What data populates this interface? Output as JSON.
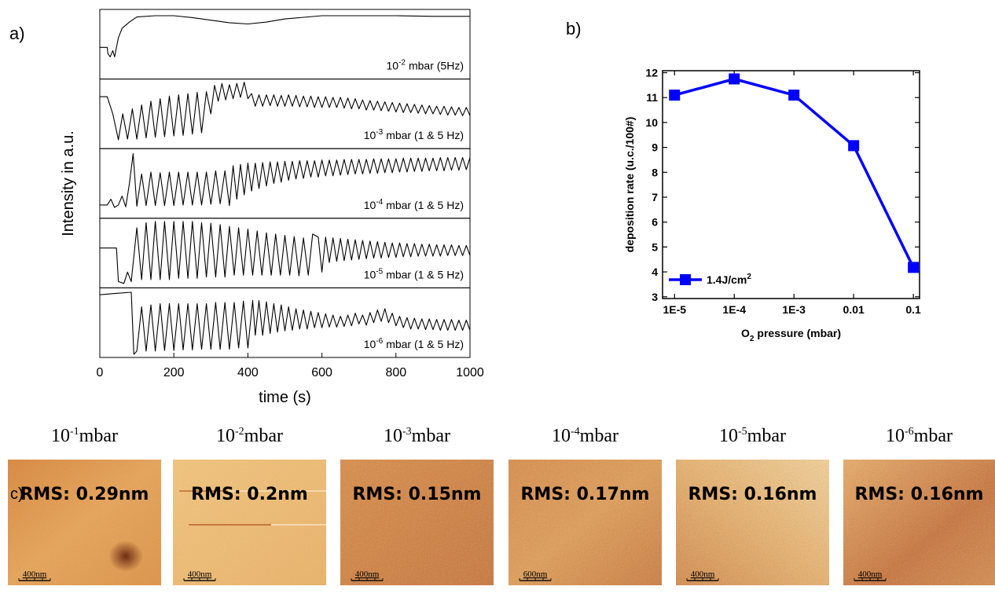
{
  "chart_data": [
    {
      "type": "line",
      "panel_label": "a)",
      "xlabel": "time (s)",
      "ylabel": "Intensity in a.u.",
      "xlim": [
        0,
        1000
      ],
      "xticks": [
        0,
        200,
        400,
        600,
        800,
        1000
      ],
      "panels": [
        {
          "annotation": {
            "base": "10",
            "exp": "-2",
            "suffix": "mbar (5Hz)"
          },
          "color": "#000000",
          "ylim": [
            0,
            1
          ],
          "x": [
            0,
            20,
            22,
            28,
            35,
            40,
            50,
            60,
            80,
            100,
            150,
            200,
            250,
            300,
            350,
            400,
            450,
            500,
            600,
            700,
            800,
            900,
            1000
          ],
          "values": [
            0.45,
            0.45,
            0.35,
            0.3,
            0.4,
            0.3,
            0.6,
            0.75,
            0.85,
            0.93,
            0.95,
            0.95,
            0.92,
            0.88,
            0.84,
            0.82,
            0.85,
            0.9,
            0.95,
            0.95,
            0.95,
            0.94,
            0.94
          ]
        },
        {
          "annotation": {
            "base": "10",
            "exp": "-3",
            "suffix": "mbar (1 & 5 Hz)"
          },
          "color": "#000000",
          "ylim": [
            0,
            1
          ],
          "x": [
            0,
            20,
            35,
            50,
            62,
            75,
            88,
            100,
            113,
            125,
            138,
            150,
            163,
            175,
            188,
            200,
            213,
            225,
            238,
            250,
            263,
            275,
            288,
            300,
            310,
            320,
            330,
            340,
            350,
            360,
            370,
            380,
            390,
            400,
            410,
            420,
            430,
            440,
            450,
            460,
            470,
            480,
            490,
            500,
            510,
            520,
            530,
            540,
            550,
            560,
            570,
            580,
            590,
            600,
            610,
            620,
            630,
            640,
            650,
            660,
            670,
            680,
            690,
            700,
            710,
            720,
            730,
            740,
            750,
            760,
            770,
            780,
            790,
            800,
            810,
            820,
            830,
            840,
            850,
            860,
            870,
            880,
            890,
            900,
            910,
            920,
            930,
            940,
            950,
            960,
            970,
            980,
            990,
            1000
          ],
          "values": [
            0.77,
            0.77,
            0.5,
            0.09,
            0.5,
            0.1,
            0.58,
            0.1,
            0.64,
            0.12,
            0.7,
            0.13,
            0.74,
            0.14,
            0.78,
            0.15,
            0.8,
            0.16,
            0.82,
            0.18,
            0.84,
            0.2,
            0.85,
            0.5,
            0.95,
            0.7,
            0.98,
            0.72,
            0.96,
            0.74,
            0.98,
            0.76,
            1.0,
            0.74,
            0.82,
            0.62,
            0.8,
            0.62,
            0.8,
            0.63,
            0.8,
            0.62,
            0.79,
            0.62,
            0.8,
            0.62,
            0.79,
            0.61,
            0.78,
            0.61,
            0.78,
            0.6,
            0.77,
            0.6,
            0.77,
            0.6,
            0.76,
            0.6,
            0.76,
            0.59,
            0.75,
            0.58,
            0.74,
            0.58,
            0.72,
            0.56,
            0.71,
            0.56,
            0.7,
            0.55,
            0.69,
            0.54,
            0.68,
            0.53,
            0.67,
            0.52,
            0.66,
            0.52,
            0.65,
            0.51,
            0.64,
            0.5,
            0.63,
            0.5,
            0.62,
            0.49,
            0.62,
            0.48,
            0.61,
            0.48,
            0.6,
            0.47,
            0.6,
            0.47
          ]
        },
        {
          "annotation": {
            "base": "10",
            "exp": "-4",
            "suffix": "mbar (1 & 5 Hz)"
          },
          "color": "#000000",
          "ylim": [
            0,
            1
          ],
          "x": [
            0,
            20,
            30,
            40,
            50,
            60,
            70,
            80,
            90,
            100,
            113,
            125,
            138,
            150,
            163,
            175,
            188,
            200,
            213,
            225,
            238,
            250,
            263,
            275,
            288,
            300,
            313,
            325,
            338,
            350,
            360,
            370,
            380,
            390,
            400,
            410,
            420,
            430,
            440,
            450,
            460,
            470,
            480,
            490,
            500,
            510,
            520,
            530,
            540,
            550,
            560,
            570,
            580,
            590,
            600,
            610,
            620,
            630,
            640,
            650,
            660,
            670,
            680,
            690,
            700,
            710,
            720,
            730,
            740,
            750,
            760,
            770,
            780,
            790,
            800,
            810,
            820,
            830,
            840,
            850,
            860,
            870,
            880,
            890,
            900,
            910,
            920,
            930,
            940,
            950,
            960,
            970,
            980,
            990,
            1000
          ],
          "values": [
            0.16,
            0.16,
            0.25,
            0.12,
            0.16,
            0.3,
            0.13,
            0.5,
            0.97,
            0.14,
            0.65,
            0.15,
            0.68,
            0.15,
            0.67,
            0.15,
            0.68,
            0.15,
            0.68,
            0.16,
            0.68,
            0.16,
            0.68,
            0.16,
            0.68,
            0.17,
            0.7,
            0.18,
            0.7,
            0.15,
            0.78,
            0.25,
            0.8,
            0.32,
            0.82,
            0.38,
            0.82,
            0.42,
            0.83,
            0.46,
            0.84,
            0.5,
            0.84,
            0.52,
            0.85,
            0.55,
            0.85,
            0.57,
            0.86,
            0.58,
            0.86,
            0.6,
            0.86,
            0.6,
            0.87,
            0.62,
            0.87,
            0.62,
            0.87,
            0.63,
            0.88,
            0.64,
            0.88,
            0.65,
            0.88,
            0.65,
            0.88,
            0.66,
            0.89,
            0.66,
            0.89,
            0.67,
            0.89,
            0.67,
            0.89,
            0.68,
            0.9,
            0.68,
            0.9,
            0.69,
            0.9,
            0.69,
            0.9,
            0.7,
            0.9,
            0.7,
            0.91,
            0.7,
            0.91,
            0.71,
            0.91,
            0.71,
            0.91,
            0.72,
            0.91
          ]
        },
        {
          "annotation": {
            "base": "10",
            "exp": "-5",
            "suffix": "mbar (1 & 5 Hz)"
          },
          "color": "#000000",
          "ylim": [
            0,
            1
          ],
          "x": [
            0,
            45,
            50,
            65,
            75,
            85,
            100,
            113,
            125,
            138,
            150,
            163,
            175,
            188,
            200,
            213,
            225,
            238,
            250,
            263,
            275,
            288,
            300,
            313,
            325,
            338,
            350,
            363,
            375,
            388,
            400,
            413,
            425,
            438,
            450,
            463,
            475,
            488,
            500,
            513,
            525,
            538,
            550,
            563,
            575,
            590,
            600,
            610,
            620,
            630,
            640,
            650,
            660,
            670,
            680,
            690,
            700,
            710,
            720,
            730,
            740,
            750,
            760,
            770,
            780,
            790,
            800,
            810,
            820,
            830,
            840,
            850,
            860,
            870,
            880,
            890,
            900,
            910,
            920,
            930,
            940,
            950,
            960,
            970,
            980,
            990,
            1000
          ],
          "values": [
            0.58,
            0.58,
            0.05,
            0.02,
            0.2,
            0.05,
            0.9,
            0.08,
            0.98,
            0.08,
            1.0,
            0.08,
            1.0,
            0.08,
            1.0,
            0.1,
            1.0,
            0.1,
            1.0,
            0.1,
            0.98,
            0.12,
            0.97,
            0.12,
            0.95,
            0.12,
            0.92,
            0.15,
            0.9,
            0.15,
            0.88,
            0.15,
            0.85,
            0.15,
            0.82,
            0.15,
            0.8,
            0.15,
            0.78,
            0.15,
            0.76,
            0.14,
            0.74,
            0.15,
            0.8,
            0.75,
            0.2,
            0.75,
            0.35,
            0.74,
            0.37,
            0.73,
            0.38,
            0.72,
            0.39,
            0.71,
            0.4,
            0.7,
            0.41,
            0.69,
            0.42,
            0.68,
            0.42,
            0.67,
            0.43,
            0.66,
            0.43,
            0.66,
            0.44,
            0.65,
            0.44,
            0.65,
            0.45,
            0.64,
            0.45,
            0.64,
            0.45,
            0.63,
            0.45,
            0.63,
            0.46,
            0.63,
            0.46,
            0.62,
            0.46,
            0.62,
            0.46
          ]
        },
        {
          "annotation": {
            "base": "10",
            "exp": "-6",
            "suffix": "mbar (1 & 5 Hz)"
          },
          "color": "#000000",
          "ylim": [
            0,
            1
          ],
          "x": [
            0,
            40,
            85,
            92,
            100,
            113,
            125,
            138,
            150,
            163,
            175,
            188,
            200,
            213,
            225,
            238,
            250,
            263,
            275,
            288,
            300,
            313,
            325,
            338,
            350,
            363,
            375,
            388,
            400,
            413,
            420,
            430,
            440,
            450,
            460,
            470,
            480,
            490,
            500,
            510,
            520,
            530,
            540,
            550,
            560,
            570,
            580,
            590,
            600,
            610,
            620,
            630,
            640,
            650,
            660,
            670,
            680,
            690,
            700,
            710,
            720,
            730,
            740,
            750,
            760,
            770,
            780,
            790,
            800,
            810,
            820,
            830,
            840,
            850,
            860,
            870,
            880,
            890,
            900,
            910,
            920,
            930,
            940,
            950,
            960,
            970,
            980,
            990,
            1000
          ],
          "values": [
            0.94,
            0.96,
            0.98,
            0,
            0.05,
            0.75,
            0.05,
            0.78,
            0.05,
            0.8,
            0.06,
            0.8,
            0.06,
            0.8,
            0.07,
            0.8,
            0.07,
            0.8,
            0.08,
            0.8,
            0.08,
            0.82,
            0.08,
            0.82,
            0.08,
            0.82,
            0.1,
            0.84,
            0.1,
            0.85,
            0.3,
            0.85,
            0.3,
            0.83,
            0.33,
            0.8,
            0.35,
            0.78,
            0.37,
            0.75,
            0.38,
            0.72,
            0.4,
            0.7,
            0.4,
            0.68,
            0.42,
            0.66,
            0.42,
            0.64,
            0.43,
            0.62,
            0.43,
            0.6,
            0.44,
            0.62,
            0.45,
            0.65,
            0.48,
            0.62,
            0.46,
            0.66,
            0.5,
            0.7,
            0.52,
            0.72,
            0.5,
            0.65,
            0.45,
            0.6,
            0.42,
            0.58,
            0.4,
            0.57,
            0.4,
            0.56,
            0.39,
            0.56,
            0.39,
            0.55,
            0.38,
            0.55,
            0.38,
            0.55,
            0.38,
            0.54,
            0.38,
            0.54,
            0.38
          ]
        }
      ]
    },
    {
      "type": "line",
      "panel_label": "b)",
      "xlabel": {
        "base": "O",
        "sub": "2",
        "rest": "pressure (mbar)"
      },
      "ylabel": "deposition rate (u.c./100#)",
      "log_x": true,
      "x": [
        1e-05,
        0.0001,
        0.001,
        0.01,
        0.1
      ],
      "xlim": [
        6.3e-06,
        0.127
      ],
      "xticks": [
        {
          "value": 1e-05,
          "label": "1E-5"
        },
        {
          "value": 0.0001,
          "label": "1E-4"
        },
        {
          "value": 0.001,
          "label": "1E-3"
        },
        0.01,
        0.1
      ],
      "ylim": [
        2.93,
        12.08
      ],
      "yticks": [
        3,
        4,
        5,
        6,
        7,
        8,
        9,
        10,
        11,
        12
      ],
      "legend": "lower left",
      "series": [
        {
          "name": "1.4J/cm",
          "name_superscript": "2",
          "color": "#0000ff",
          "marker": "square",
          "values": [
            11.1,
            11.75,
            11.1,
            9.07,
            4.18
          ]
        }
      ]
    }
  ],
  "afm": {
    "panel_label": "c)",
    "images": [
      {
        "pressure": {
          "base": "10",
          "exp": "-1",
          "unit": "mbar"
        },
        "rms": "RMS: 0.29nm",
        "scale_bar": "400nm"
      },
      {
        "pressure": {
          "base": "10",
          "exp": "-2",
          "unit": "mbar"
        },
        "rms": "RMS: 0.2nm",
        "scale_bar": "400nm"
      },
      {
        "pressure": {
          "base": "10",
          "exp": "-3",
          "unit": "mbar"
        },
        "rms": "RMS: 0.15nm",
        "scale_bar": "400nm"
      },
      {
        "pressure": {
          "base": "10",
          "exp": "-4",
          "unit": "mbar"
        },
        "rms": "RMS: 0.17nm",
        "scale_bar": "600nm"
      },
      {
        "pressure": {
          "base": "10",
          "exp": "-5",
          "unit": "mbar"
        },
        "rms": "RMS: 0.16nm",
        "scale_bar": "400nm"
      },
      {
        "pressure": {
          "base": "10",
          "exp": "-6",
          "unit": "mbar"
        },
        "rms": "RMS: 0.16nm",
        "scale_bar": "400nm"
      }
    ]
  }
}
